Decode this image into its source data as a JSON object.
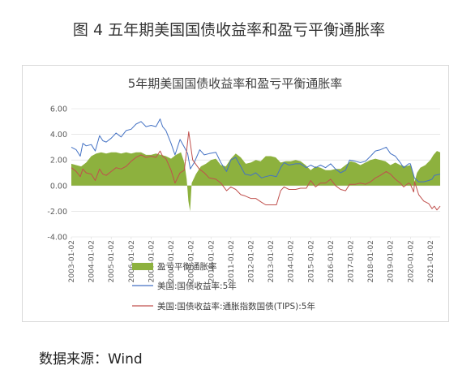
{
  "page": {
    "caption": "图 4 五年期美国国债收益率和盈亏平衡通胀率",
    "source": "数据来源：Wind"
  },
  "colors": {
    "breakeven": "#8db13e",
    "nominal": "#4472c4",
    "tips": "#c0504d",
    "axis_text": "#595959",
    "title_text": "#404040",
    "gridline": "#d9d9d9"
  },
  "chart_data": {
    "type": "area",
    "title": "5年期美国国债收益率和盈亏平衡通胀率",
    "xlabel": "",
    "ylabel": "",
    "ylim": [
      -4,
      6
    ],
    "yticks": [
      "6.00",
      "4.00",
      "2.00",
      "0.00",
      "-2.00",
      "-4.00"
    ],
    "xticks": [
      "2003-01-02",
      "2004-01-02",
      "2005-01-02",
      "2006-01-02",
      "2007-01-02",
      "2008-01-02",
      "2009-01-02",
      "2010-01-02",
      "2011-01-02",
      "2012-01-02",
      "2013-01-02",
      "2014-01-02",
      "2015-01-02",
      "2016-01-02",
      "2017-01-02",
      "2018-01-02",
      "2019-01-02",
      "2020-01-02",
      "2021-01-02"
    ],
    "x_start": "2003-01-02",
    "x_end": "2021-06-30",
    "grid": true,
    "legend_position": "bottom",
    "series": [
      {
        "name": "盈亏平衡通胀率",
        "kind": "area",
        "points": [
          [
            "2003-01-02",
            1.7
          ],
          [
            "2003-04-01",
            1.6
          ],
          [
            "2003-07-01",
            1.5
          ],
          [
            "2003-10-01",
            1.8
          ],
          [
            "2004-01-02",
            2.3
          ],
          [
            "2004-04-01",
            2.5
          ],
          [
            "2004-07-01",
            2.6
          ],
          [
            "2004-10-01",
            2.5
          ],
          [
            "2005-01-02",
            2.6
          ],
          [
            "2005-04-01",
            2.6
          ],
          [
            "2005-07-01",
            2.5
          ],
          [
            "2005-10-01",
            2.6
          ],
          [
            "2006-01-02",
            2.5
          ],
          [
            "2006-04-01",
            2.6
          ],
          [
            "2006-07-01",
            2.6
          ],
          [
            "2006-10-01",
            2.4
          ],
          [
            "2007-01-02",
            2.4
          ],
          [
            "2007-04-01",
            2.5
          ],
          [
            "2007-07-01",
            2.4
          ],
          [
            "2007-10-01",
            2.3
          ],
          [
            "2008-01-02",
            2.1
          ],
          [
            "2008-04-01",
            2.4
          ],
          [
            "2008-07-01",
            2.6
          ],
          [
            "2008-09-01",
            1.8
          ],
          [
            "2008-10-15",
            0.5
          ],
          [
            "2008-11-15",
            -1.2
          ],
          [
            "2008-12-15",
            -2.0
          ],
          [
            "2009-01-15",
            0.2
          ],
          [
            "2009-04-01",
            0.9
          ],
          [
            "2009-07-01",
            1.5
          ],
          [
            "2009-10-01",
            1.7
          ],
          [
            "2010-01-02",
            2.0
          ],
          [
            "2010-04-01",
            2.1
          ],
          [
            "2010-07-01",
            1.6
          ],
          [
            "2010-10-01",
            1.5
          ],
          [
            "2011-01-02",
            2.1
          ],
          [
            "2011-04-01",
            2.5
          ],
          [
            "2011-07-01",
            2.2
          ],
          [
            "2011-10-01",
            1.7
          ],
          [
            "2012-01-02",
            1.8
          ],
          [
            "2012-04-01",
            2.0
          ],
          [
            "2012-07-01",
            1.9
          ],
          [
            "2012-10-01",
            2.3
          ],
          [
            "2013-01-02",
            2.3
          ],
          [
            "2013-04-01",
            2.2
          ],
          [
            "2013-07-01",
            1.8
          ],
          [
            "2013-10-01",
            1.9
          ],
          [
            "2014-01-02",
            1.9
          ],
          [
            "2014-04-01",
            2.0
          ],
          [
            "2014-07-01",
            1.9
          ],
          [
            "2014-10-01",
            1.6
          ],
          [
            "2015-01-02",
            1.2
          ],
          [
            "2015-04-01",
            1.5
          ],
          [
            "2015-07-01",
            1.4
          ],
          [
            "2015-10-01",
            1.2
          ],
          [
            "2016-01-02",
            1.2
          ],
          [
            "2016-04-01",
            1.3
          ],
          [
            "2016-07-01",
            1.3
          ],
          [
            "2016-10-01",
            1.6
          ],
          [
            "2017-01-02",
            1.9
          ],
          [
            "2017-04-01",
            1.8
          ],
          [
            "2017-07-01",
            1.6
          ],
          [
            "2017-10-01",
            1.8
          ],
          [
            "2018-01-02",
            2.0
          ],
          [
            "2018-04-01",
            2.1
          ],
          [
            "2018-07-01",
            2.0
          ],
          [
            "2018-10-01",
            1.9
          ],
          [
            "2019-01-02",
            1.6
          ],
          [
            "2019-04-01",
            1.8
          ],
          [
            "2019-07-01",
            1.6
          ],
          [
            "2019-10-01",
            1.5
          ],
          [
            "2020-01-02",
            1.6
          ],
          [
            "2020-03-01",
            0.9
          ],
          [
            "2020-03-20",
            0.3
          ],
          [
            "2020-05-01",
            1.0
          ],
          [
            "2020-07-01",
            1.4
          ],
          [
            "2020-10-01",
            1.6
          ],
          [
            "2021-01-02",
            2.0
          ],
          [
            "2021-03-01",
            2.4
          ],
          [
            "2021-05-01",
            2.7
          ],
          [
            "2021-06-30",
            2.6
          ]
        ]
      },
      {
        "name": "美国:国债收益率:5年",
        "kind": "line",
        "points": [
          [
            "2003-01-02",
            3.0
          ],
          [
            "2003-04-01",
            2.8
          ],
          [
            "2003-06-15",
            2.3
          ],
          [
            "2003-08-01",
            3.3
          ],
          [
            "2003-10-01",
            3.1
          ],
          [
            "2004-01-02",
            3.2
          ],
          [
            "2004-03-15",
            2.7
          ],
          [
            "2004-06-01",
            3.9
          ],
          [
            "2004-08-01",
            3.5
          ],
          [
            "2004-10-01",
            3.4
          ],
          [
            "2005-01-02",
            3.7
          ],
          [
            "2005-04-01",
            4.1
          ],
          [
            "2005-07-01",
            3.8
          ],
          [
            "2005-10-01",
            4.3
          ],
          [
            "2006-01-02",
            4.4
          ],
          [
            "2006-04-01",
            4.8
          ],
          [
            "2006-07-01",
            5.0
          ],
          [
            "2006-10-01",
            4.6
          ],
          [
            "2007-01-02",
            4.7
          ],
          [
            "2007-04-01",
            4.6
          ],
          [
            "2007-06-15",
            5.2
          ],
          [
            "2007-08-01",
            4.6
          ],
          [
            "2007-10-01",
            4.3
          ],
          [
            "2008-01-02",
            3.3
          ],
          [
            "2008-03-15",
            2.4
          ],
          [
            "2008-06-15",
            3.6
          ],
          [
            "2008-09-01",
            3.0
          ],
          [
            "2008-11-01",
            2.5
          ],
          [
            "2008-12-20",
            1.3
          ],
          [
            "2009-03-01",
            1.8
          ],
          [
            "2009-06-10",
            2.8
          ],
          [
            "2009-09-01",
            2.4
          ],
          [
            "2009-12-01",
            2.5
          ],
          [
            "2010-04-01",
            2.6
          ],
          [
            "2010-07-01",
            1.8
          ],
          [
            "2010-10-15",
            1.1
          ],
          [
            "2011-01-02",
            2.0
          ],
          [
            "2011-04-01",
            2.2
          ],
          [
            "2011-07-01",
            1.5
          ],
          [
            "2011-09-15",
            0.9
          ],
          [
            "2012-01-02",
            0.8
          ],
          [
            "2012-04-01",
            1.0
          ],
          [
            "2012-07-15",
            0.6
          ],
          [
            "2012-10-01",
            0.7
          ],
          [
            "2013-01-02",
            0.8
          ],
          [
            "2013-04-15",
            0.7
          ],
          [
            "2013-07-01",
            1.4
          ],
          [
            "2013-09-01",
            1.8
          ],
          [
            "2013-12-01",
            1.6
          ],
          [
            "2014-04-01",
            1.7
          ],
          [
            "2014-07-01",
            1.7
          ],
          [
            "2014-10-15",
            1.4
          ],
          [
            "2015-01-02",
            1.6
          ],
          [
            "2015-04-01",
            1.4
          ],
          [
            "2015-07-01",
            1.6
          ],
          [
            "2015-10-01",
            1.4
          ],
          [
            "2016-01-02",
            1.7
          ],
          [
            "2016-04-01",
            1.3
          ],
          [
            "2016-07-01",
            1.0
          ],
          [
            "2016-10-01",
            1.2
          ],
          [
            "2016-12-15",
            2.0
          ],
          [
            "2017-04-01",
            1.9
          ],
          [
            "2017-07-01",
            1.8
          ],
          [
            "2017-10-01",
            1.9
          ],
          [
            "2018-01-02",
            2.3
          ],
          [
            "2018-04-01",
            2.7
          ],
          [
            "2018-07-01",
            2.8
          ],
          [
            "2018-10-15",
            3.0
          ],
          [
            "2019-01-02",
            2.5
          ],
          [
            "2019-04-01",
            2.3
          ],
          [
            "2019-07-01",
            1.8
          ],
          [
            "2019-09-01",
            1.4
          ],
          [
            "2019-12-01",
            1.7
          ],
          [
            "2020-01-02",
            1.7
          ],
          [
            "2020-03-15",
            0.6
          ],
          [
            "2020-06-01",
            0.3
          ],
          [
            "2020-09-01",
            0.3
          ],
          [
            "2020-12-01",
            0.4
          ],
          [
            "2021-02-01",
            0.5
          ],
          [
            "2021-03-15",
            0.8
          ],
          [
            "2021-06-30",
            0.9
          ]
        ]
      },
      {
        "name": "美国:国债收益率:通胀指数国债(TIPS):5年",
        "kind": "line",
        "points": [
          [
            "2003-01-02",
            1.4
          ],
          [
            "2003-04-01",
            1.1
          ],
          [
            "2003-06-15",
            0.7
          ],
          [
            "2003-08-01",
            1.3
          ],
          [
            "2003-10-01",
            1.0
          ],
          [
            "2004-01-02",
            0.9
          ],
          [
            "2004-03-15",
            0.4
          ],
          [
            "2004-06-01",
            1.3
          ],
          [
            "2004-08-01",
            0.9
          ],
          [
            "2004-10-01",
            0.8
          ],
          [
            "2005-01-02",
            1.1
          ],
          [
            "2005-04-01",
            1.4
          ],
          [
            "2005-07-01",
            1.3
          ],
          [
            "2005-10-01",
            1.5
          ],
          [
            "2006-01-02",
            1.9
          ],
          [
            "2006-04-01",
            2.2
          ],
          [
            "2006-07-01",
            2.4
          ],
          [
            "2006-10-01",
            2.2
          ],
          [
            "2007-01-02",
            2.3
          ],
          [
            "2007-04-01",
            2.2
          ],
          [
            "2007-06-15",
            2.7
          ],
          [
            "2007-08-01",
            2.3
          ],
          [
            "2007-10-01",
            2.1
          ],
          [
            "2008-01-02",
            1.2
          ],
          [
            "2008-03-15",
            0.2
          ],
          [
            "2008-06-15",
            1.0
          ],
          [
            "2008-09-01",
            1.2
          ],
          [
            "2008-10-20",
            3.0
          ],
          [
            "2008-11-20",
            4.2
          ],
          [
            "2008-12-20",
            3.3
          ],
          [
            "2009-02-01",
            2.0
          ],
          [
            "2009-06-01",
            1.3
          ],
          [
            "2009-09-01",
            1.0
          ],
          [
            "2009-12-01",
            0.6
          ],
          [
            "2010-04-01",
            0.5
          ],
          [
            "2010-07-01",
            0.2
          ],
          [
            "2010-10-15",
            -0.4
          ],
          [
            "2011-01-02",
            -0.1
          ],
          [
            "2011-04-01",
            -0.3
          ],
          [
            "2011-07-01",
            -0.7
          ],
          [
            "2011-09-15",
            -0.8
          ],
          [
            "2012-01-02",
            -1.0
          ],
          [
            "2012-04-01",
            -1.0
          ],
          [
            "2012-07-15",
            -1.3
          ],
          [
            "2012-10-01",
            -1.5
          ],
          [
            "2013-01-02",
            -1.5
          ],
          [
            "2013-04-15",
            -1.5
          ],
          [
            "2013-07-01",
            -0.4
          ],
          [
            "2013-09-01",
            -0.1
          ],
          [
            "2013-12-01",
            -0.3
          ],
          [
            "2014-04-01",
            -0.3
          ],
          [
            "2014-07-01",
            -0.2
          ],
          [
            "2014-10-15",
            -0.2
          ],
          [
            "2015-01-02",
            0.4
          ],
          [
            "2015-04-01",
            -0.1
          ],
          [
            "2015-07-01",
            0.2
          ],
          [
            "2015-10-01",
            0.2
          ],
          [
            "2016-01-02",
            0.5
          ],
          [
            "2016-04-01",
            0.0
          ],
          [
            "2016-07-01",
            -0.3
          ],
          [
            "2016-10-01",
            -0.4
          ],
          [
            "2016-12-15",
            0.1
          ],
          [
            "2017-04-01",
            0.1
          ],
          [
            "2017-07-01",
            0.2
          ],
          [
            "2017-10-01",
            0.1
          ],
          [
            "2018-01-02",
            0.3
          ],
          [
            "2018-04-01",
            0.6
          ],
          [
            "2018-07-01",
            0.8
          ],
          [
            "2018-10-15",
            1.1
          ],
          [
            "2019-01-02",
            0.9
          ],
          [
            "2019-04-01",
            0.5
          ],
          [
            "2019-07-01",
            0.2
          ],
          [
            "2019-09-01",
            -0.1
          ],
          [
            "2019-12-01",
            0.2
          ],
          [
            "2020-01-02",
            0.1
          ],
          [
            "2020-03-01",
            -0.5
          ],
          [
            "2020-03-20",
            0.3
          ],
          [
            "2020-06-01",
            -0.7
          ],
          [
            "2020-09-01",
            -1.2
          ],
          [
            "2020-12-01",
            -1.4
          ],
          [
            "2021-02-01",
            -1.8
          ],
          [
            "2021-03-15",
            -1.6
          ],
          [
            "2021-05-01",
            -1.9
          ],
          [
            "2021-06-30",
            -1.6
          ]
        ]
      }
    ]
  }
}
